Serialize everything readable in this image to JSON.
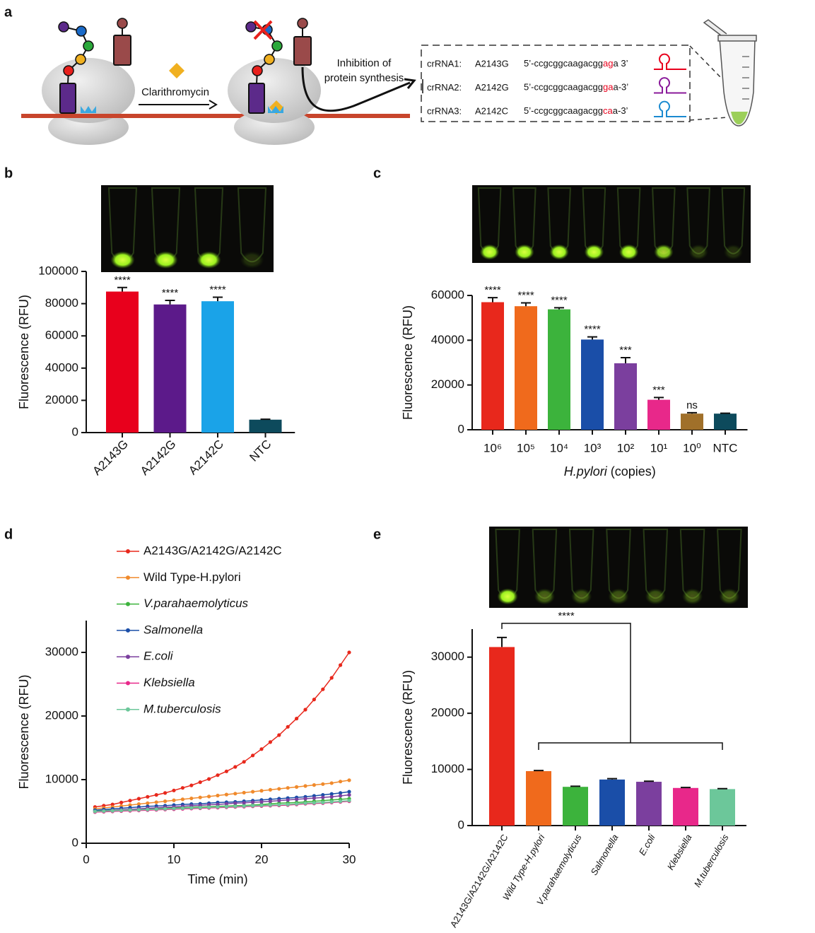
{
  "diagram": {
    "panel_label": "a",
    "drug": "Clarithromycin",
    "effect": [
      "Inhibition of",
      "protein synthesis"
    ],
    "crrnas": [
      {
        "name": "crRNA1:",
        "mutation": "A2143G",
        "sequence": "5’-ccgcggcaagacgg",
        "highlight": "ag",
        "end": "a 3’"
      },
      {
        "name": "crRNA2:",
        "mutation": "A2142G",
        "sequence": "5’-ccgcggcaagacgg",
        "highlight": "ga",
        "end": "a-3’"
      },
      {
        "name": "crRNA3:",
        "mutation": "A2142C",
        "sequence": "5’-ccgcggcaagacgg",
        "highlight": "ca",
        "end": "a-3’"
      }
    ]
  },
  "chart_data": [
    {
      "type": "bar",
      "panel_label": "b",
      "y_label": "Fluorescence (RFU)",
      "categories": [
        "A2143G",
        "A2142G",
        "A2142C",
        "NTC"
      ],
      "values": [
        87500,
        79500,
        81500,
        8000
      ],
      "errors": [
        2500,
        2500,
        2500,
        300
      ],
      "colors": [
        "#e8001c",
        "#5c1a8a",
        "#1aa3e8",
        "#0d4a5c"
      ],
      "annotations": [
        "****",
        "****",
        "****",
        null
      ],
      "ylim": [
        0,
        100000
      ],
      "yticks": [
        0,
        20000,
        40000,
        60000,
        80000,
        100000
      ]
    },
    {
      "type": "bar",
      "panel_label": "c",
      "y_label": "Fluorescence (RFU)",
      "x_label": {
        "italic": "H.pylori",
        "text": "(copies)"
      },
      "categories": [
        "10⁶",
        "10⁵",
        "10⁴",
        "10³",
        "10²",
        "10¹",
        "10⁰",
        "NTC"
      ],
      "values": [
        57000,
        55200,
        53800,
        40300,
        29700,
        13400,
        7200,
        7200
      ],
      "errors": [
        2000,
        1500,
        700,
        1200,
        2500,
        1000,
        400,
        200
      ],
      "colors": [
        "#e8281c",
        "#f06a1c",
        "#3cb33c",
        "#1a4ea8",
        "#7b3f9e",
        "#e8288a",
        "#a0702a",
        "#0d4a5c"
      ],
      "annotations": [
        "****",
        "****",
        "****",
        "****",
        "***",
        "***",
        "ns",
        null
      ],
      "ylim": [
        0,
        60000
      ],
      "yticks": [
        0,
        20000,
        40000,
        60000
      ]
    },
    {
      "type": "line",
      "panel_label": "d",
      "y_label": "Fluorescence (RFU)",
      "x_label": "Time (min)",
      "x": [
        1,
        2,
        3,
        4,
        5,
        6,
        7,
        8,
        9,
        10,
        11,
        12,
        13,
        14,
        15,
        16,
        17,
        18,
        19,
        20,
        21,
        22,
        23,
        24,
        25,
        26,
        27,
        28,
        29,
        30
      ],
      "series": [
        {
          "name": "A2143G/A2142G/A2142C",
          "color": "#e8281c",
          "values": [
            5700,
            5900,
            6100,
            6400,
            6700,
            7000,
            7300,
            7600,
            7900,
            8300,
            8700,
            9100,
            9600,
            10100,
            10700,
            11300,
            12000,
            12800,
            13800,
            14800,
            15900,
            17000,
            18300,
            19600,
            21000,
            22600,
            24200,
            26000,
            28000,
            30000
          ]
        },
        {
          "name": "Wild Type-H.pylori",
          "color": "#f08a2c",
          "values": [
            5400,
            5550,
            5700,
            5850,
            6000,
            6150,
            6300,
            6450,
            6600,
            6750,
            6900,
            7050,
            7200,
            7350,
            7500,
            7650,
            7800,
            7950,
            8100,
            8250,
            8400,
            8550,
            8700,
            8850,
            9000,
            9150,
            9300,
            9450,
            9700,
            9900
          ]
        },
        {
          "name": "V.parahaemolyticus",
          "color": "#3cb33c",
          "values": [
            5100,
            5150,
            5200,
            5250,
            5300,
            5350,
            5400,
            5450,
            5500,
            5550,
            5600,
            5650,
            5700,
            5750,
            5800,
            5850,
            5900,
            5950,
            6000,
            6100,
            6200,
            6300,
            6350,
            6400,
            6500,
            6600,
            6700,
            6800,
            6900,
            7000
          ]
        },
        {
          "name": "Salmonella",
          "color": "#1a4ea8",
          "values": [
            5200,
            5300,
            5400,
            5500,
            5600,
            5700,
            5800,
            5850,
            5900,
            6000,
            6100,
            6150,
            6200,
            6300,
            6400,
            6450,
            6500,
            6600,
            6700,
            6800,
            6900,
            7000,
            7100,
            7200,
            7300,
            7450,
            7600,
            7750,
            7900,
            8100
          ]
        },
        {
          "name": "E.coli",
          "color": "#7b3f9e",
          "values": [
            5000,
            5100,
            5150,
            5250,
            5300,
            5400,
            5500,
            5550,
            5650,
            5700,
            5800,
            5900,
            5950,
            6050,
            6100,
            6200,
            6300,
            6350,
            6450,
            6500,
            6600,
            6700,
            6800,
            6900,
            7000,
            7100,
            7200,
            7300,
            7450,
            7600
          ]
        },
        {
          "name": "Klebsiella",
          "color": "#e8288a",
          "values": [
            4900,
            4950,
            5000,
            5050,
            5100,
            5150,
            5200,
            5250,
            5300,
            5350,
            5400,
            5450,
            5500,
            5550,
            5600,
            5650,
            5700,
            5750,
            5800,
            5850,
            5900,
            5950,
            6000,
            6100,
            6200,
            6250,
            6300,
            6400,
            6500,
            6600
          ]
        },
        {
          "name": "M.tuberculosis",
          "color": "#6cc79a",
          "values": [
            5000,
            5050,
            5100,
            5150,
            5200,
            5250,
            5300,
            5350,
            5400,
            5450,
            5500,
            5550,
            5600,
            5650,
            5700,
            5750,
            5800,
            5850,
            5900,
            5950,
            6000,
            6050,
            6100,
            6200,
            6300,
            6350,
            6400,
            6500,
            6600,
            6700
          ]
        }
      ],
      "xlim": [
        0,
        30
      ],
      "xticks": [
        0,
        10,
        20,
        30
      ],
      "ylim": [
        0,
        35000
      ],
      "yticks": [
        0,
        10000,
        20000,
        30000
      ]
    },
    {
      "type": "bar",
      "panel_label": "e",
      "y_label": "Fluorescence (RFU)",
      "categories": [
        "A2143G/A2142G/A2142C",
        "Wild Type-H.pylori",
        "V.parahaemolyticus",
        "Salmonella",
        "E.coli",
        "Klebsiella",
        "M.tuberculosis"
      ],
      "values": [
        31800,
        9700,
        6900,
        8200,
        7800,
        6700,
        6500
      ],
      "errors": [
        1700,
        100,
        100,
        150,
        100,
        80,
        80
      ],
      "colors": [
        "#e8281c",
        "#f06a1c",
        "#3cb33c",
        "#1a4ea8",
        "#7b3f9e",
        "#e8288a",
        "#6cc79a"
      ],
      "significance": "****",
      "ylim": [
        0,
        35000
      ],
      "yticks": [
        0,
        10000,
        20000,
        30000
      ]
    }
  ]
}
